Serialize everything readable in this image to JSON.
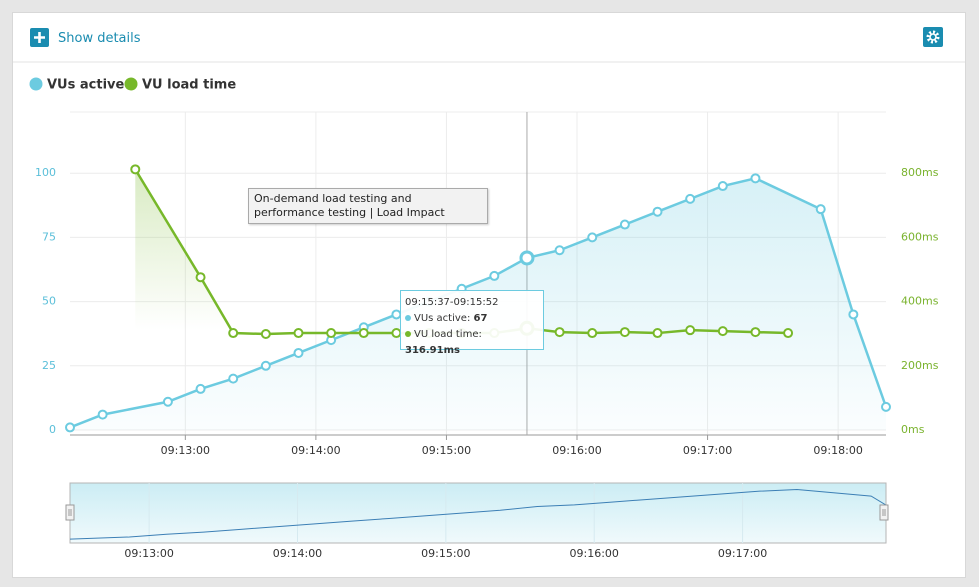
{
  "header": {
    "button": "Show details"
  },
  "chart_data": {
    "type": "line",
    "series": [
      {
        "name": "VUs active",
        "color": "#6ccbe0",
        "axis": "y",
        "x": [
          "09:12:07",
          "09:12:22",
          "09:12:52",
          "09:13:07",
          "09:13:22",
          "09:13:37",
          "09:13:52",
          "09:14:07",
          "09:14:22",
          "09:14:37",
          "09:14:52",
          "09:15:07",
          "09:15:22",
          "09:15:37",
          "09:15:52",
          "09:16:07",
          "09:16:22",
          "09:16:37",
          "09:16:52",
          "09:17:07",
          "09:17:22",
          "09:17:52",
          "09:18:07",
          "09:18:22"
        ],
        "values": [
          1,
          6,
          11,
          16,
          20,
          25,
          30,
          35,
          40,
          45,
          50,
          55,
          60,
          67,
          70,
          75,
          80,
          85,
          90,
          95,
          98,
          86,
          45,
          9
        ]
      },
      {
        "name": "VU load time",
        "color": "#77b82a",
        "axis": "y2",
        "x": [
          "09:12:37",
          "09:13:07",
          "09:13:22",
          "09:13:37",
          "09:13:52",
          "09:14:07",
          "09:14:22",
          "09:14:37",
          "09:14:52",
          "09:15:07",
          "09:15:22",
          "09:15:37",
          "09:15:52",
          "09:16:07",
          "09:16:22",
          "09:16:37",
          "09:16:52",
          "09:17:07",
          "09:17:22",
          "09:17:37"
        ],
        "values": [
          812,
          476,
          302,
          299,
          302,
          302,
          302,
          302,
          302,
          302,
          302,
          316.91,
          305,
          302,
          305,
          302,
          311,
          308,
          305,
          302
        ]
      }
    ],
    "xlim": [
      "09:12:07",
      "09:18:22"
    ],
    "xticks": [
      "09:13:00",
      "09:14:00",
      "09:15:00",
      "09:16:00",
      "09:17:00",
      "09:18:00"
    ],
    "ylim": [
      0,
      125
    ],
    "yticks": [
      0,
      25,
      50,
      75,
      100
    ],
    "y2lim": [
      0,
      1000
    ],
    "y2ticks": [
      {
        "value": 0,
        "label": "0ms"
      },
      {
        "value": 200,
        "label": "200ms"
      },
      {
        "value": 400,
        "label": "400ms"
      },
      {
        "value": 600,
        "label": "600ms"
      },
      {
        "value": 800,
        "label": "800ms"
      }
    ],
    "grid": true,
    "annotation": "On-demand load testing and performance testing | Load Impact",
    "tooltip": {
      "title": "09:15:37-09:15:52",
      "items": [
        {
          "name": "VUs active:",
          "value": "67"
        },
        {
          "name": "VU load time:",
          "value": "316.91ms"
        }
      ]
    },
    "navigator": {
      "xlim": [
        "09:12:28",
        "09:17:58"
      ],
      "ylim": [
        0,
        110
      ],
      "xticks": [
        "09:13:00",
        "09:14:00",
        "09:15:00",
        "09:16:00",
        "09:17:00"
      ]
    }
  }
}
